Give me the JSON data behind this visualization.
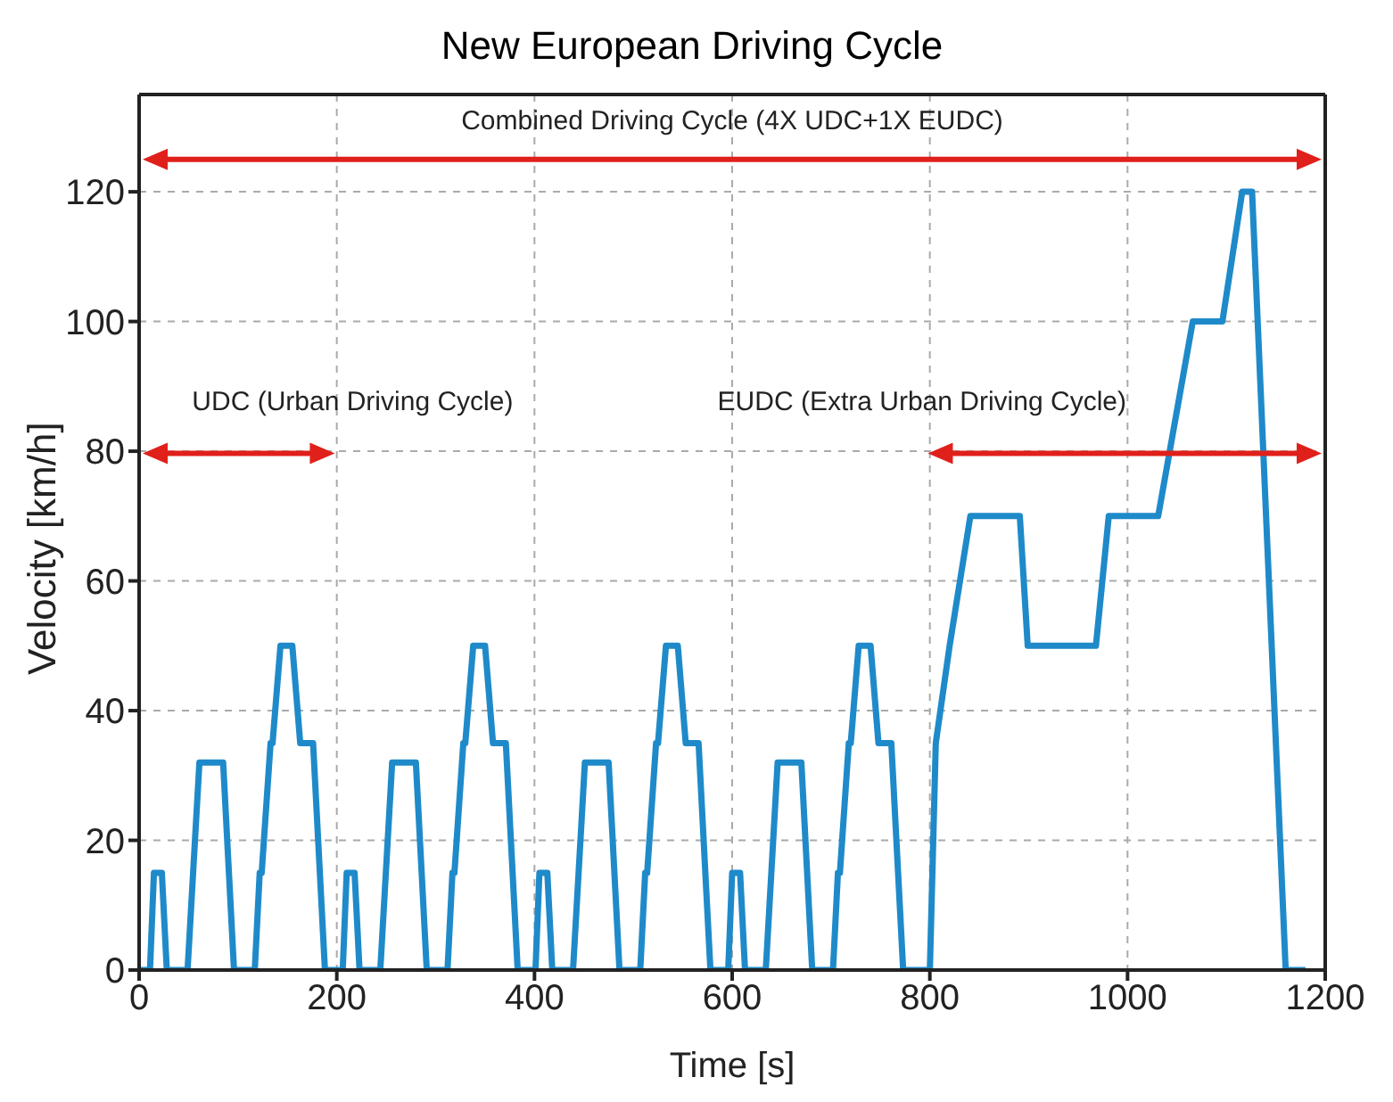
{
  "chart_data": {
    "type": "line",
    "title": "New European Driving Cycle",
    "xlabel": "Time [s]",
    "ylabel": "Velocity [km/h]",
    "x": [
      0,
      11,
      15,
      23,
      28,
      49,
      61,
      85,
      96,
      117,
      122,
      124,
      133,
      135,
      143,
      155,
      163,
      176,
      188,
      195,
      206,
      210,
      218,
      223,
      244,
      256,
      280,
      291,
      312,
      317,
      319,
      328,
      330,
      338,
      350,
      358,
      371,
      383,
      390,
      401,
      405,
      413,
      418,
      439,
      451,
      475,
      486,
      507,
      512,
      514,
      523,
      525,
      533,
      545,
      553,
      566,
      578,
      585,
      596,
      600,
      608,
      613,
      634,
      646,
      670,
      681,
      702,
      707,
      709,
      718,
      720,
      728,
      740,
      748,
      761,
      773,
      780,
      800,
      806,
      820,
      841,
      891,
      899,
      968,
      981,
      1031,
      1066,
      1096,
      1116,
      1126,
      1160,
      1180
    ],
    "series": [
      {
        "color": "#1f8ac9",
        "values": [
          0,
          0,
          15,
          15,
          0,
          0,
          32,
          32,
          0,
          0,
          15,
          15,
          35,
          35,
          50,
          50,
          35,
          35,
          0,
          0,
          0,
          15,
          15,
          0,
          0,
          32,
          32,
          0,
          0,
          15,
          15,
          35,
          35,
          50,
          50,
          35,
          35,
          0,
          0,
          0,
          15,
          15,
          0,
          0,
          32,
          32,
          0,
          0,
          15,
          15,
          35,
          35,
          50,
          50,
          35,
          35,
          0,
          0,
          0,
          15,
          15,
          0,
          0,
          32,
          32,
          0,
          0,
          15,
          15,
          35,
          35,
          50,
          50,
          35,
          35,
          0,
          0,
          0,
          35,
          50,
          70,
          70,
          50,
          50,
          70,
          70,
          100,
          100,
          120,
          120,
          0,
          0
        ]
      }
    ],
    "xlim": [
      0,
      1200
    ],
    "xticks": [
      0,
      200,
      400,
      600,
      800,
      1000,
      1200
    ],
    "ylim": [
      0,
      135
    ],
    "yticks": [
      0,
      20,
      40,
      60,
      80,
      100,
      120
    ],
    "grid": true,
    "line_style": "solid",
    "marker": "none",
    "annotations": [
      "Combined Driving Cycle (4X UDC+1X EUDC)",
      "UDC (Urban Driving Cycle)",
      "EUDC (Extra Urban Driving Cycle)"
    ]
  }
}
